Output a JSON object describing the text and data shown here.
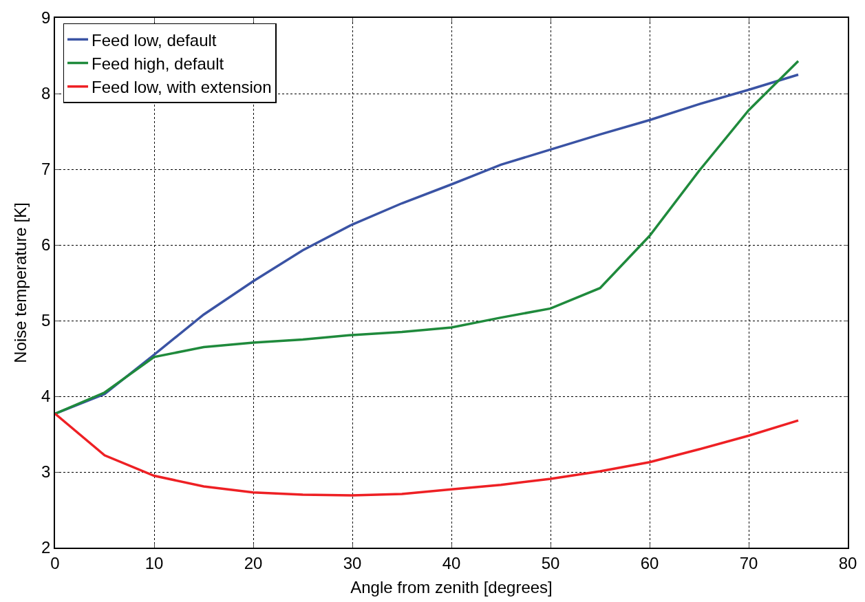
{
  "chart_data": {
    "type": "line",
    "xlabel": "Angle from zenith [degrees]",
    "ylabel": "Noise temperature [K]",
    "x": [
      0,
      5,
      10,
      15,
      20,
      25,
      30,
      35,
      40,
      45,
      50,
      55,
      60,
      65,
      70,
      75
    ],
    "series": [
      {
        "name": "Feed low, default",
        "color": "#3a53a4",
        "values": [
          3.77,
          4.03,
          4.55,
          5.08,
          5.52,
          5.93,
          6.27,
          6.55,
          6.8,
          7.06,
          7.26,
          7.46,
          7.65,
          7.86,
          8.05,
          8.25
        ]
      },
      {
        "name": "Feed high, default",
        "color": "#1f8a3c",
        "values": [
          3.77,
          4.05,
          4.52,
          4.65,
          4.71,
          4.75,
          4.81,
          4.85,
          4.91,
          5.04,
          5.16,
          5.43,
          6.12,
          6.98,
          7.78,
          8.43
        ]
      },
      {
        "name": "Feed low, with extension",
        "color": "#ee2024",
        "values": [
          3.77,
          3.22,
          2.95,
          2.81,
          2.73,
          2.7,
          2.69,
          2.71,
          2.77,
          2.83,
          2.91,
          3.01,
          3.13,
          3.3,
          3.48,
          3.68
        ]
      }
    ],
    "xlim": [
      0,
      80
    ],
    "xticks": [
      0,
      10,
      20,
      30,
      40,
      50,
      60,
      70,
      80
    ],
    "ylim": [
      2,
      9
    ],
    "yticks": [
      2,
      3,
      4,
      5,
      6,
      7,
      8,
      9
    ],
    "grid": true,
    "legend": "top left",
    "marker": "none",
    "line_style": "solid"
  }
}
